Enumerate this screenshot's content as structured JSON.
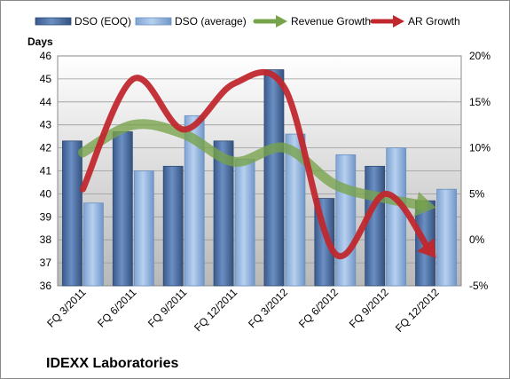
{
  "chart_data": {
    "type": "bar",
    "company_label": "IDEXX Laboratories",
    "ylabel": "Days",
    "categories": [
      "FQ 3/2011",
      "FQ 6/2011",
      "FQ 9/2011",
      "FQ 12/2011",
      "FQ 3/2012",
      "FQ 6/2012",
      "FQ 9/2012",
      "FQ 12/2012"
    ],
    "ylim": [
      36,
      46
    ],
    "y_ticks": [
      "36",
      "37",
      "38",
      "39",
      "40",
      "41",
      "42",
      "43",
      "44",
      "45",
      "46"
    ],
    "y2lim": [
      -5,
      20
    ],
    "y2_ticks": [
      "-5%",
      "0%",
      "5%",
      "10%",
      "15%",
      "20%"
    ],
    "grid": true,
    "legend_position": "top",
    "bar_series": [
      {
        "name": "DSO (EOQ)",
        "values": [
          42.3,
          42.7,
          41.2,
          42.3,
          45.4,
          39.8,
          41.2,
          39.7
        ],
        "color": "#4a6ea4"
      },
      {
        "name": "DSO (average)",
        "values": [
          39.6,
          41.0,
          43.4,
          41.5,
          42.6,
          41.7,
          42.0,
          40.2
        ],
        "color": "#8fb1dd"
      }
    ],
    "line_series": [
      {
        "name": "Revenue Growth",
        "values": [
          9.5,
          12.5,
          11.5,
          8.5,
          10.0,
          6.0,
          4.5,
          3.5
        ],
        "color": "#77a34a",
        "axis": "right"
      },
      {
        "name": "AR Growth",
        "values": [
          5.5,
          17.5,
          12.0,
          17.0,
          16.5,
          -1.5,
          5.0,
          -2.0
        ],
        "color": "#c0282e",
        "axis": "right"
      }
    ]
  }
}
